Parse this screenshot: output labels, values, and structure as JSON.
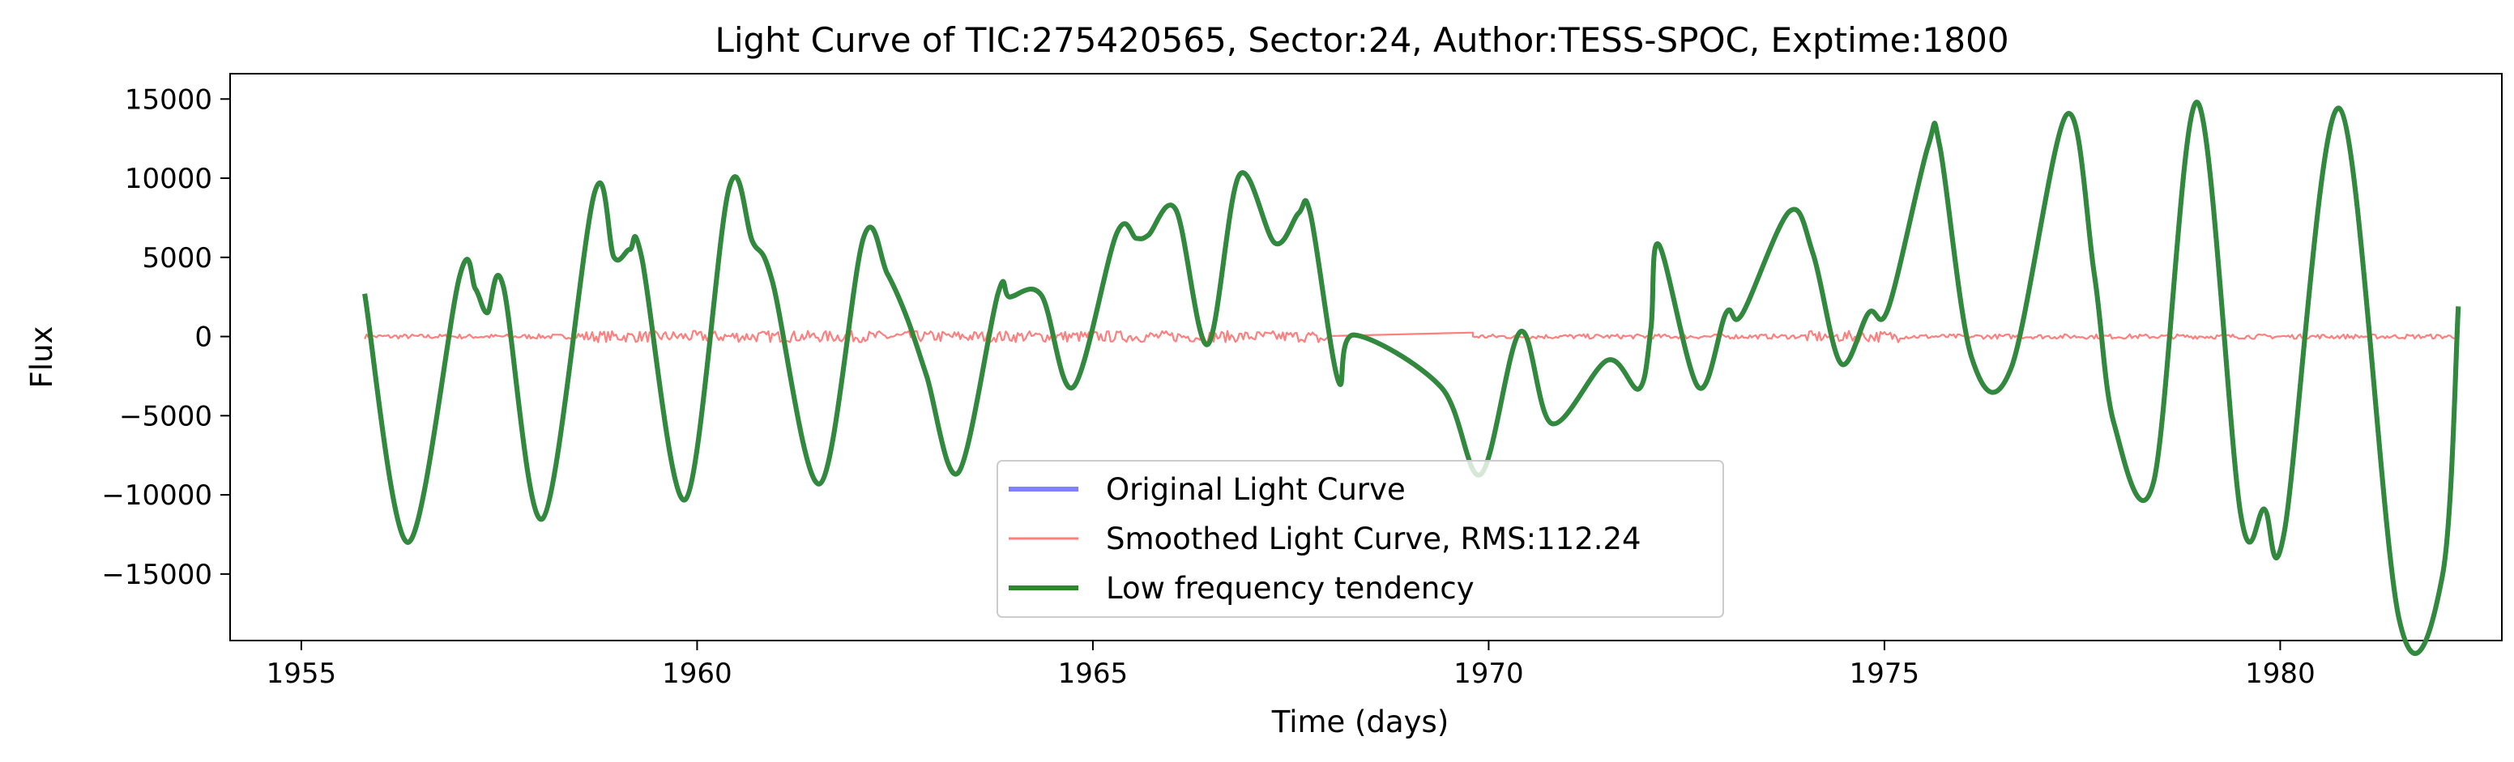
{
  "chart_data": {
    "type": "line",
    "title": "Light Curve of TIC:275420565, Sector:24, Author:TESS-SPOC, Exptime:1800",
    "xlabel": "Time (days)",
    "ylabel": "Flux",
    "xlim": [
      1954.1,
      1982.8
    ],
    "ylim": [
      -19200,
      16600
    ],
    "xticks": [
      1955,
      1960,
      1965,
      1970,
      1975,
      1980
    ],
    "yticks": [
      -15000,
      -10000,
      -5000,
      0,
      5000,
      10000,
      15000
    ],
    "xtick_labels": [
      "1955",
      "1960",
      "1965",
      "1970",
      "1975",
      "1980"
    ],
    "ytick_labels": [
      "−15000",
      "−10000",
      "−5000",
      "0",
      "5000",
      "10000",
      "15000"
    ],
    "grid": false,
    "legend": "lower-center",
    "gap": [
      1968.0,
      1969.8
    ],
    "series": [
      {
        "name": "Original Light Curve",
        "color": "#7f7fff",
        "x": [
          1955.8,
          1956.35,
          1957.0,
          1957.2,
          1957.35,
          1957.55,
          1958.05,
          1958.7,
          1958.95,
          1959.15,
          1959.3,
          1959.85,
          1960.4,
          1960.7,
          1960.95,
          1961.55,
          1962.1,
          1962.4,
          1962.65,
          1962.9,
          1963.3,
          1963.8,
          1963.95,
          1964.35,
          1964.75,
          1965.3,
          1965.55,
          1965.7,
          1966.05,
          1966.45,
          1966.85,
          1967.3,
          1967.6,
          1967.75,
          1968.1,
          1968.3,
          1969.4,
          1969.9,
          1970.4,
          1970.8,
          1971.5,
          1971.9,
          1972.05,
          1972.15,
          1972.65,
          1973.0,
          1973.2,
          1973.8,
          1974.1,
          1974.45,
          1974.8,
          1975.05,
          1975.55,
          1975.7,
          1976.1,
          1976.6,
          1977.3,
          1977.65,
          1977.9,
          1978.4,
          1978.95,
          1979.5,
          1979.8,
          1980.05,
          1980.75,
          1981.5,
          1982.05,
          1982.25
        ],
        "y": [
          2700,
          -13000,
          3800,
          3000,
          1500,
          3200,
          -11500,
          9000,
          5000,
          5500,
          5000,
          -10300,
          9300,
          6000,
          3500,
          -9300,
          6200,
          4000,
          1200,
          -2500,
          -8600,
          2700,
          2500,
          2600,
          -3200,
          6500,
          6200,
          6400,
          8000,
          -500,
          10200,
          5900,
          7800,
          7700,
          -2800,
          100,
          -3200,
          -8700,
          300,
          -5500,
          -1500,
          -3300,
          500,
          5800,
          -3200,
          1500,
          1400,
          7900,
          5200,
          -1700,
          1500,
          1800,
          12000,
          12000,
          -1300,
          -2000,
          14000,
          4000,
          -5500,
          -9200,
          14800,
          -11200,
          -10900,
          -12400,
          14400,
          -17800,
          -15100,
          1900
        ]
      },
      {
        "name": "Smoothed Light Curve, RMS:112.24",
        "color": "#ff7f7f"
      },
      {
        "name": "Low frequency tendency",
        "color": "#2a8a2a"
      }
    ]
  }
}
